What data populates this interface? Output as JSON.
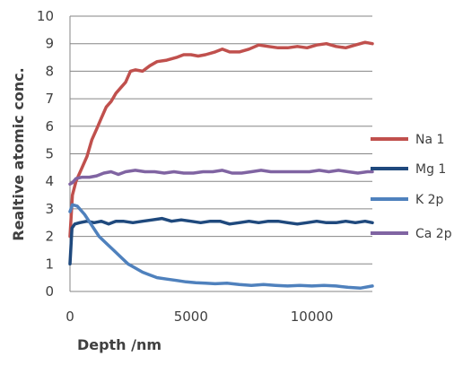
{
  "chart_data": {
    "type": "line",
    "xlabel": "Depth /nm",
    "ylabel": "Realtive atomic conc.",
    "xlim": [
      0,
      12500
    ],
    "ylim": [
      0,
      10
    ],
    "xticks": [
      0,
      5000,
      10000
    ],
    "yticks": [
      0,
      1,
      2,
      3,
      4,
      5,
      6,
      7,
      8,
      9,
      10
    ],
    "grid": "horizontal",
    "legend_position": "right",
    "series": [
      {
        "name": "Na 1",
        "color": "#c0504d",
        "points": [
          [
            0,
            2.0
          ],
          [
            100,
            3.5
          ],
          [
            250,
            4.0
          ],
          [
            500,
            4.5
          ],
          [
            700,
            4.9
          ],
          [
            900,
            5.5
          ],
          [
            1100,
            5.9
          ],
          [
            1300,
            6.3
          ],
          [
            1500,
            6.7
          ],
          [
            1700,
            6.9
          ],
          [
            1900,
            7.2
          ],
          [
            2100,
            7.4
          ],
          [
            2300,
            7.6
          ],
          [
            2500,
            8.0
          ],
          [
            2700,
            8.05
          ],
          [
            3000,
            8.0
          ],
          [
            3300,
            8.2
          ],
          [
            3600,
            8.35
          ],
          [
            4000,
            8.4
          ],
          [
            4400,
            8.5
          ],
          [
            4700,
            8.6
          ],
          [
            5000,
            8.6
          ],
          [
            5300,
            8.55
          ],
          [
            5600,
            8.6
          ],
          [
            6000,
            8.7
          ],
          [
            6300,
            8.8
          ],
          [
            6600,
            8.7
          ],
          [
            7000,
            8.7
          ],
          [
            7400,
            8.8
          ],
          [
            7800,
            8.95
          ],
          [
            8200,
            8.9
          ],
          [
            8600,
            8.85
          ],
          [
            9000,
            8.85
          ],
          [
            9400,
            8.9
          ],
          [
            9800,
            8.85
          ],
          [
            10200,
            8.95
          ],
          [
            10600,
            9.0
          ],
          [
            11000,
            8.9
          ],
          [
            11400,
            8.85
          ],
          [
            11800,
            8.95
          ],
          [
            12200,
            9.05
          ],
          [
            12500,
            9.0
          ]
        ]
      },
      {
        "name": "Mg 1",
        "color": "#1f497d",
        "points": [
          [
            0,
            1.0
          ],
          [
            80,
            2.3
          ],
          [
            200,
            2.45
          ],
          [
            400,
            2.5
          ],
          [
            700,
            2.55
          ],
          [
            1000,
            2.5
          ],
          [
            1300,
            2.55
          ],
          [
            1600,
            2.45
          ],
          [
            1900,
            2.55
          ],
          [
            2200,
            2.55
          ],
          [
            2600,
            2.5
          ],
          [
            3000,
            2.55
          ],
          [
            3400,
            2.6
          ],
          [
            3800,
            2.65
          ],
          [
            4200,
            2.55
          ],
          [
            4600,
            2.6
          ],
          [
            5000,
            2.55
          ],
          [
            5400,
            2.5
          ],
          [
            5800,
            2.55
          ],
          [
            6200,
            2.55
          ],
          [
            6600,
            2.45
          ],
          [
            7000,
            2.5
          ],
          [
            7400,
            2.55
          ],
          [
            7800,
            2.5
          ],
          [
            8200,
            2.55
          ],
          [
            8600,
            2.55
          ],
          [
            9000,
            2.5
          ],
          [
            9400,
            2.45
          ],
          [
            9800,
            2.5
          ],
          [
            10200,
            2.55
          ],
          [
            10600,
            2.5
          ],
          [
            11000,
            2.5
          ],
          [
            11400,
            2.55
          ],
          [
            11800,
            2.5
          ],
          [
            12200,
            2.55
          ],
          [
            12500,
            2.5
          ]
        ]
      },
      {
        "name": "K 2p",
        "color": "#4f81bd",
        "points": [
          [
            0,
            2.9
          ],
          [
            100,
            3.15
          ],
          [
            300,
            3.1
          ],
          [
            600,
            2.8
          ],
          [
            900,
            2.4
          ],
          [
            1200,
            2.0
          ],
          [
            1500,
            1.75
          ],
          [
            1800,
            1.5
          ],
          [
            2100,
            1.25
          ],
          [
            2400,
            1.0
          ],
          [
            2700,
            0.85
          ],
          [
            3000,
            0.7
          ],
          [
            3300,
            0.6
          ],
          [
            3600,
            0.5
          ],
          [
            4000,
            0.45
          ],
          [
            4400,
            0.4
          ],
          [
            4800,
            0.35
          ],
          [
            5200,
            0.32
          ],
          [
            5600,
            0.3
          ],
          [
            6000,
            0.28
          ],
          [
            6500,
            0.3
          ],
          [
            7000,
            0.25
          ],
          [
            7500,
            0.22
          ],
          [
            8000,
            0.25
          ],
          [
            8500,
            0.22
          ],
          [
            9000,
            0.2
          ],
          [
            9500,
            0.22
          ],
          [
            10000,
            0.2
          ],
          [
            10500,
            0.22
          ],
          [
            11000,
            0.2
          ],
          [
            11500,
            0.15
          ],
          [
            12000,
            0.12
          ],
          [
            12500,
            0.2
          ]
        ]
      },
      {
        "name": "Ca 2p",
        "color": "#8064a2",
        "points": [
          [
            0,
            3.9
          ],
          [
            100,
            3.95
          ],
          [
            250,
            4.1
          ],
          [
            500,
            4.15
          ],
          [
            800,
            4.15
          ],
          [
            1100,
            4.2
          ],
          [
            1400,
            4.3
          ],
          [
            1700,
            4.35
          ],
          [
            2000,
            4.25
          ],
          [
            2300,
            4.35
          ],
          [
            2700,
            4.4
          ],
          [
            3100,
            4.35
          ],
          [
            3500,
            4.35
          ],
          [
            3900,
            4.3
          ],
          [
            4300,
            4.35
          ],
          [
            4700,
            4.3
          ],
          [
            5100,
            4.3
          ],
          [
            5500,
            4.35
          ],
          [
            5900,
            4.35
          ],
          [
            6300,
            4.4
          ],
          [
            6700,
            4.3
          ],
          [
            7100,
            4.3
          ],
          [
            7500,
            4.35
          ],
          [
            7900,
            4.4
          ],
          [
            8300,
            4.35
          ],
          [
            8700,
            4.35
          ],
          [
            9100,
            4.35
          ],
          [
            9500,
            4.35
          ],
          [
            9900,
            4.35
          ],
          [
            10300,
            4.4
          ],
          [
            10700,
            4.35
          ],
          [
            11100,
            4.4
          ],
          [
            11500,
            4.35
          ],
          [
            11900,
            4.3
          ],
          [
            12300,
            4.35
          ],
          [
            12500,
            4.35
          ]
        ]
      }
    ]
  }
}
